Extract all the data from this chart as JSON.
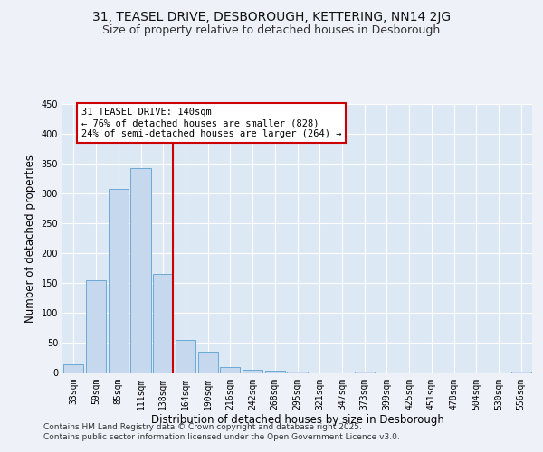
{
  "title1": "31, TEASEL DRIVE, DESBOROUGH, KETTERING, NN14 2JG",
  "title2": "Size of property relative to detached houses in Desborough",
  "xlabel": "Distribution of detached houses by size in Desborough",
  "ylabel": "Number of detached properties",
  "bar_labels": [
    "33sqm",
    "59sqm",
    "85sqm",
    "111sqm",
    "138sqm",
    "164sqm",
    "190sqm",
    "216sqm",
    "242sqm",
    "268sqm",
    "295sqm",
    "321sqm",
    "347sqm",
    "373sqm",
    "399sqm",
    "425sqm",
    "451sqm",
    "478sqm",
    "504sqm",
    "530sqm",
    "556sqm"
  ],
  "bar_values": [
    15,
    155,
    308,
    342,
    165,
    55,
    35,
    10,
    6,
    4,
    3,
    0,
    0,
    3,
    0,
    0,
    0,
    0,
    0,
    0,
    3
  ],
  "bar_color": "#c5d8ee",
  "bar_edge_color": "#6aaad4",
  "background_color": "#dde8f5",
  "grid_color": "#ffffff",
  "vline_color": "#cc0000",
  "annotation_line1": "31 TEASEL DRIVE: 140sqm",
  "annotation_line2": "← 76% of detached houses are smaller (828)",
  "annotation_line3": "24% of semi-detached houses are larger (264) →",
  "annotation_box_color": "#cc0000",
  "ylim": [
    0,
    450
  ],
  "yticks": [
    0,
    50,
    100,
    150,
    200,
    250,
    300,
    350,
    400,
    450
  ],
  "footer1": "Contains HM Land Registry data © Crown copyright and database right 2025.",
  "footer2": "Contains public sector information licensed under the Open Government Licence v3.0.",
  "title1_fontsize": 10,
  "title2_fontsize": 9,
  "axis_label_fontsize": 8.5,
  "tick_fontsize": 7,
  "annotation_fontsize": 7.5,
  "footer_fontsize": 6.5,
  "vline_bar_index": 4
}
